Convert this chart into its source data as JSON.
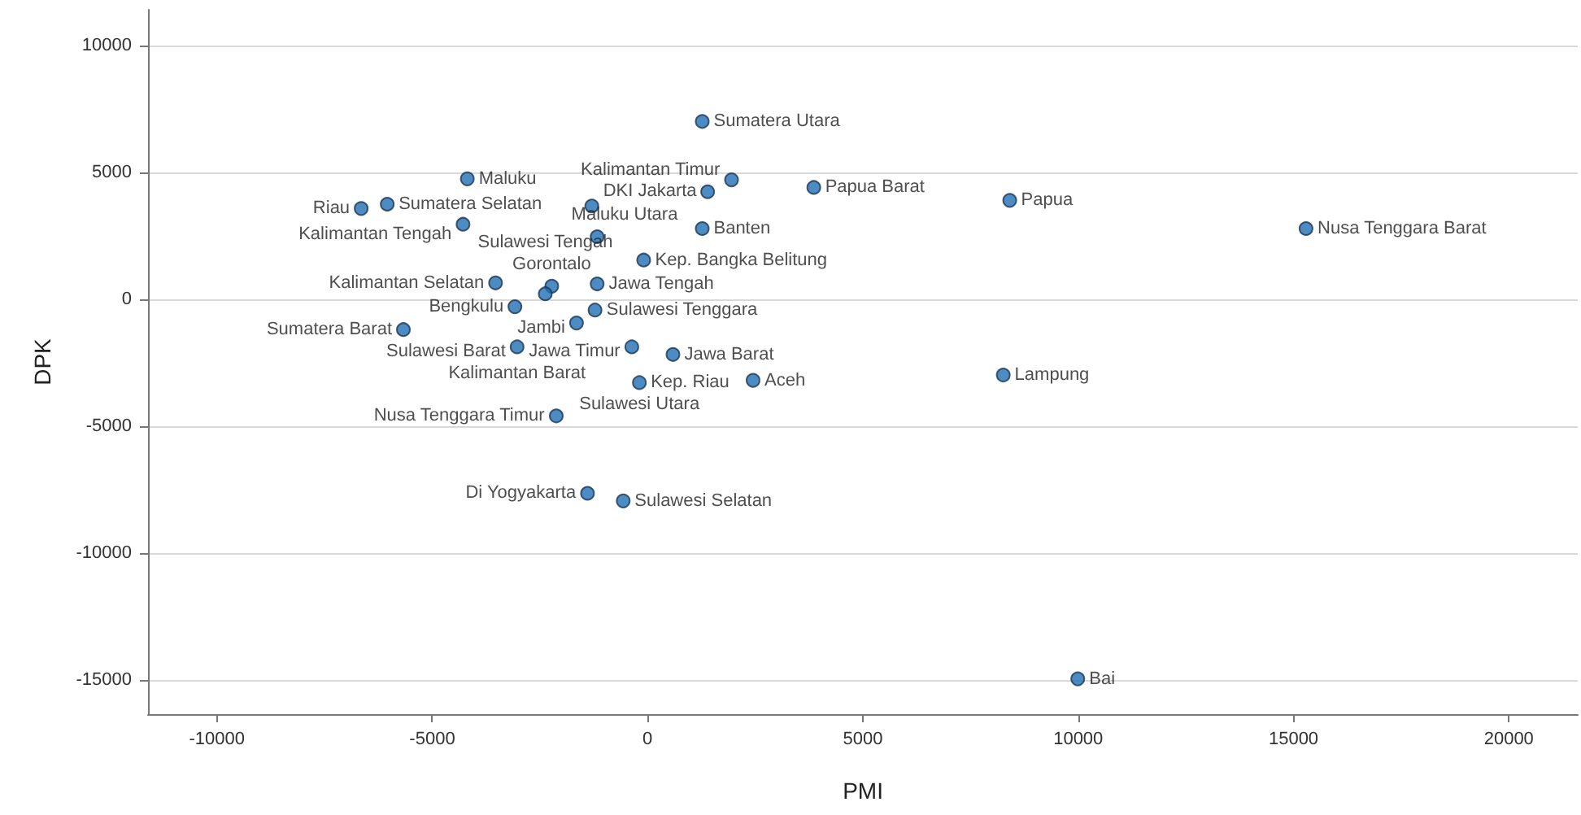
{
  "chart_data": {
    "type": "scatter",
    "xlabel": "PMI",
    "ylabel": "DPK",
    "xlim": [
      -11600,
      21600
    ],
    "xticks": [
      -10000,
      -5000,
      0,
      5000,
      10000,
      15000,
      20000
    ],
    "ylim": [
      -16350,
      11400
    ],
    "yticks": [
      -15000,
      -10000,
      -5000,
      0,
      5000,
      10000
    ],
    "grid": "y",
    "marker": "circle",
    "series": [
      {
        "color": "#1f6fb4",
        "x": [
          1270,
          -4185,
          1950,
          3860,
          8410,
          15290,
          -6650,
          -6045,
          -1295,
          1270,
          1395,
          -1170,
          -4285,
          -90,
          -3530,
          -2225,
          -1170,
          -2375,
          -3080,
          -1650,
          -1220,
          -5670,
          -3030,
          -365,
          590,
          2450,
          8260,
          -190,
          -2120,
          -1395,
          -565,
          9990
        ],
        "values": [
          7000,
          4740,
          4700,
          4400,
          3890,
          2780,
          3570,
          3740,
          3670,
          2780,
          4230,
          2460,
          2950,
          1540,
          640,
          510,
          600,
          210,
          -300,
          -940,
          -430,
          -1200,
          -1880,
          -1880,
          -2180,
          -3200,
          -2990,
          -3290,
          -4600,
          -7650,
          -7950,
          -14960
        ]
      }
    ],
    "annotations": [
      {
        "text": "Sumatera Utara",
        "x": 1270,
        "y": 7000
      },
      {
        "text": "Maluku",
        "x": -4185,
        "y": 4740
      },
      {
        "text": "Kalimantan Timur",
        "x": 1950,
        "y": 4700
      },
      {
        "text": "Papua Barat",
        "x": 3860,
        "y": 4400
      },
      {
        "text": "Papua",
        "x": 8410,
        "y": 3890
      },
      {
        "text": "Nusa Tenggara Barat",
        "x": 15290,
        "y": 2780
      },
      {
        "text": "Riau",
        "x": -6650,
        "y": 3570
      },
      {
        "text": "Sumatera Selatan",
        "x": -6045,
        "y": 3740
      },
      {
        "text": "DKI Jakarta",
        "x": -1295,
        "y": 3670
      },
      {
        "text": "Banten",
        "x": 1270,
        "y": 2780
      },
      {
        "text": "Maluku Utara",
        "x": -1170,
        "y": 2460
      },
      {
        "text": "Kalimantan Tengah",
        "x": -4285,
        "y": 2950
      },
      {
        "text": "Kep. Bangka Belitung",
        "x": -90,
        "y": 1540
      },
      {
        "text": "Kalimantan Selatan",
        "x": -3530,
        "y": 640
      },
      {
        "text": "Gorontalo",
        "x": -2225,
        "y": 510
      },
      {
        "text": "Jawa Tengah",
        "x": -1170,
        "y": 600
      },
      {
        "text": "Sulawesi Tengah",
        "x": -2375,
        "y": 210
      },
      {
        "text": "Bengkulu",
        "x": -3080,
        "y": -300
      },
      {
        "text": "Jambi",
        "x": -1650,
        "y": -940
      },
      {
        "text": "Sulawesi Tenggara",
        "x": -1220,
        "y": -430
      },
      {
        "text": "Sumatera Barat",
        "x": -5670,
        "y": -1200
      },
      {
        "text": "Sulawesi Barat",
        "x": -3030,
        "y": -1880
      },
      {
        "text": "Kalimantan Barat",
        "x": -3030,
        "y": -1880
      },
      {
        "text": "Jawa Timur",
        "x": -365,
        "y": -1880
      },
      {
        "text": "Jawa Barat",
        "x": 590,
        "y": -2180
      },
      {
        "text": "Aceh",
        "x": 2450,
        "y": -3200
      },
      {
        "text": "Lampung",
        "x": 8260,
        "y": -2990
      },
      {
        "text": "Sulawesi Utara",
        "x": -190,
        "y": -3290
      },
      {
        "text": "Kep. Riau",
        "x": -190,
        "y": -3290
      },
      {
        "text": "Nusa Tenggara Timur",
        "x": -2120,
        "y": -4600
      },
      {
        "text": "Di Yogyakarta",
        "x": -1395,
        "y": -7650
      },
      {
        "text": "Sulawesi Selatan",
        "x": -565,
        "y": -7950
      },
      {
        "text": "Bai",
        "x": 9990,
        "y": -14960
      }
    ]
  }
}
